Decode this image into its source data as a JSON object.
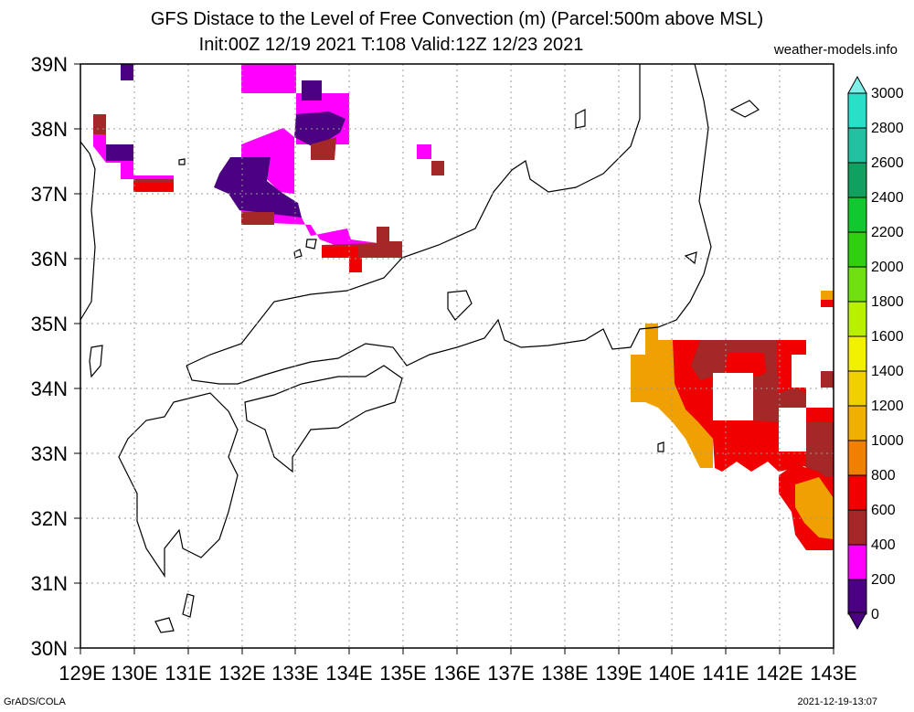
{
  "title_line1": "GFS Distace to the Level of Free Convection (m) (Parcel:500m above MSL)",
  "title_line2": "Init:00Z 12/19 2021 T:108 Valid:12Z 12/23 2021",
  "credit": "weather-models.info",
  "footer_left": "GrADS/COLA",
  "footer_right": "2021-12-19-13:07",
  "map": {
    "lon_labels": [
      "129E",
      "130E",
      "131E",
      "132E",
      "133E",
      "134E",
      "135E",
      "136E",
      "137E",
      "138E",
      "139E",
      "140E",
      "141E",
      "142E",
      "143E"
    ],
    "lat_labels": [
      "39N",
      "38N",
      "37N",
      "36N",
      "35N",
      "34N",
      "33N",
      "32N",
      "31N",
      "30N"
    ],
    "lon_range": [
      129,
      143
    ],
    "lat_range": [
      30,
      39
    ],
    "grid": "dotted"
  },
  "colorbar": {
    "labels": [
      "3000",
      "2800",
      "2600",
      "2400",
      "2200",
      "2000",
      "1800",
      "1600",
      "1400",
      "1200",
      "1000",
      "800",
      "600",
      "400",
      "200",
      "0"
    ],
    "colors_top_to_bottom": [
      "#7ff0e8",
      "#28e0c8",
      "#20c0a0",
      "#10a060",
      "#10c830",
      "#30d010",
      "#70e010",
      "#b8f000",
      "#f0f000",
      "#f0d000",
      "#f0b000",
      "#f08000",
      "#f00000",
      "#a52828",
      "#ff00ff",
      "#4b0082"
    ]
  },
  "shaded_regions": [
    {
      "name": "magenta-top-north",
      "color": "#ff00ff"
    },
    {
      "name": "indigo-top-north",
      "color": "#4b0082"
    },
    {
      "name": "brown-north",
      "color": "#a52828"
    },
    {
      "name": "red-north",
      "color": "#f00000"
    },
    {
      "name": "orange-east",
      "color": "#f0a000"
    },
    {
      "name": "red-east",
      "color": "#f00000"
    },
    {
      "name": "brown-east",
      "color": "#a52828"
    }
  ]
}
